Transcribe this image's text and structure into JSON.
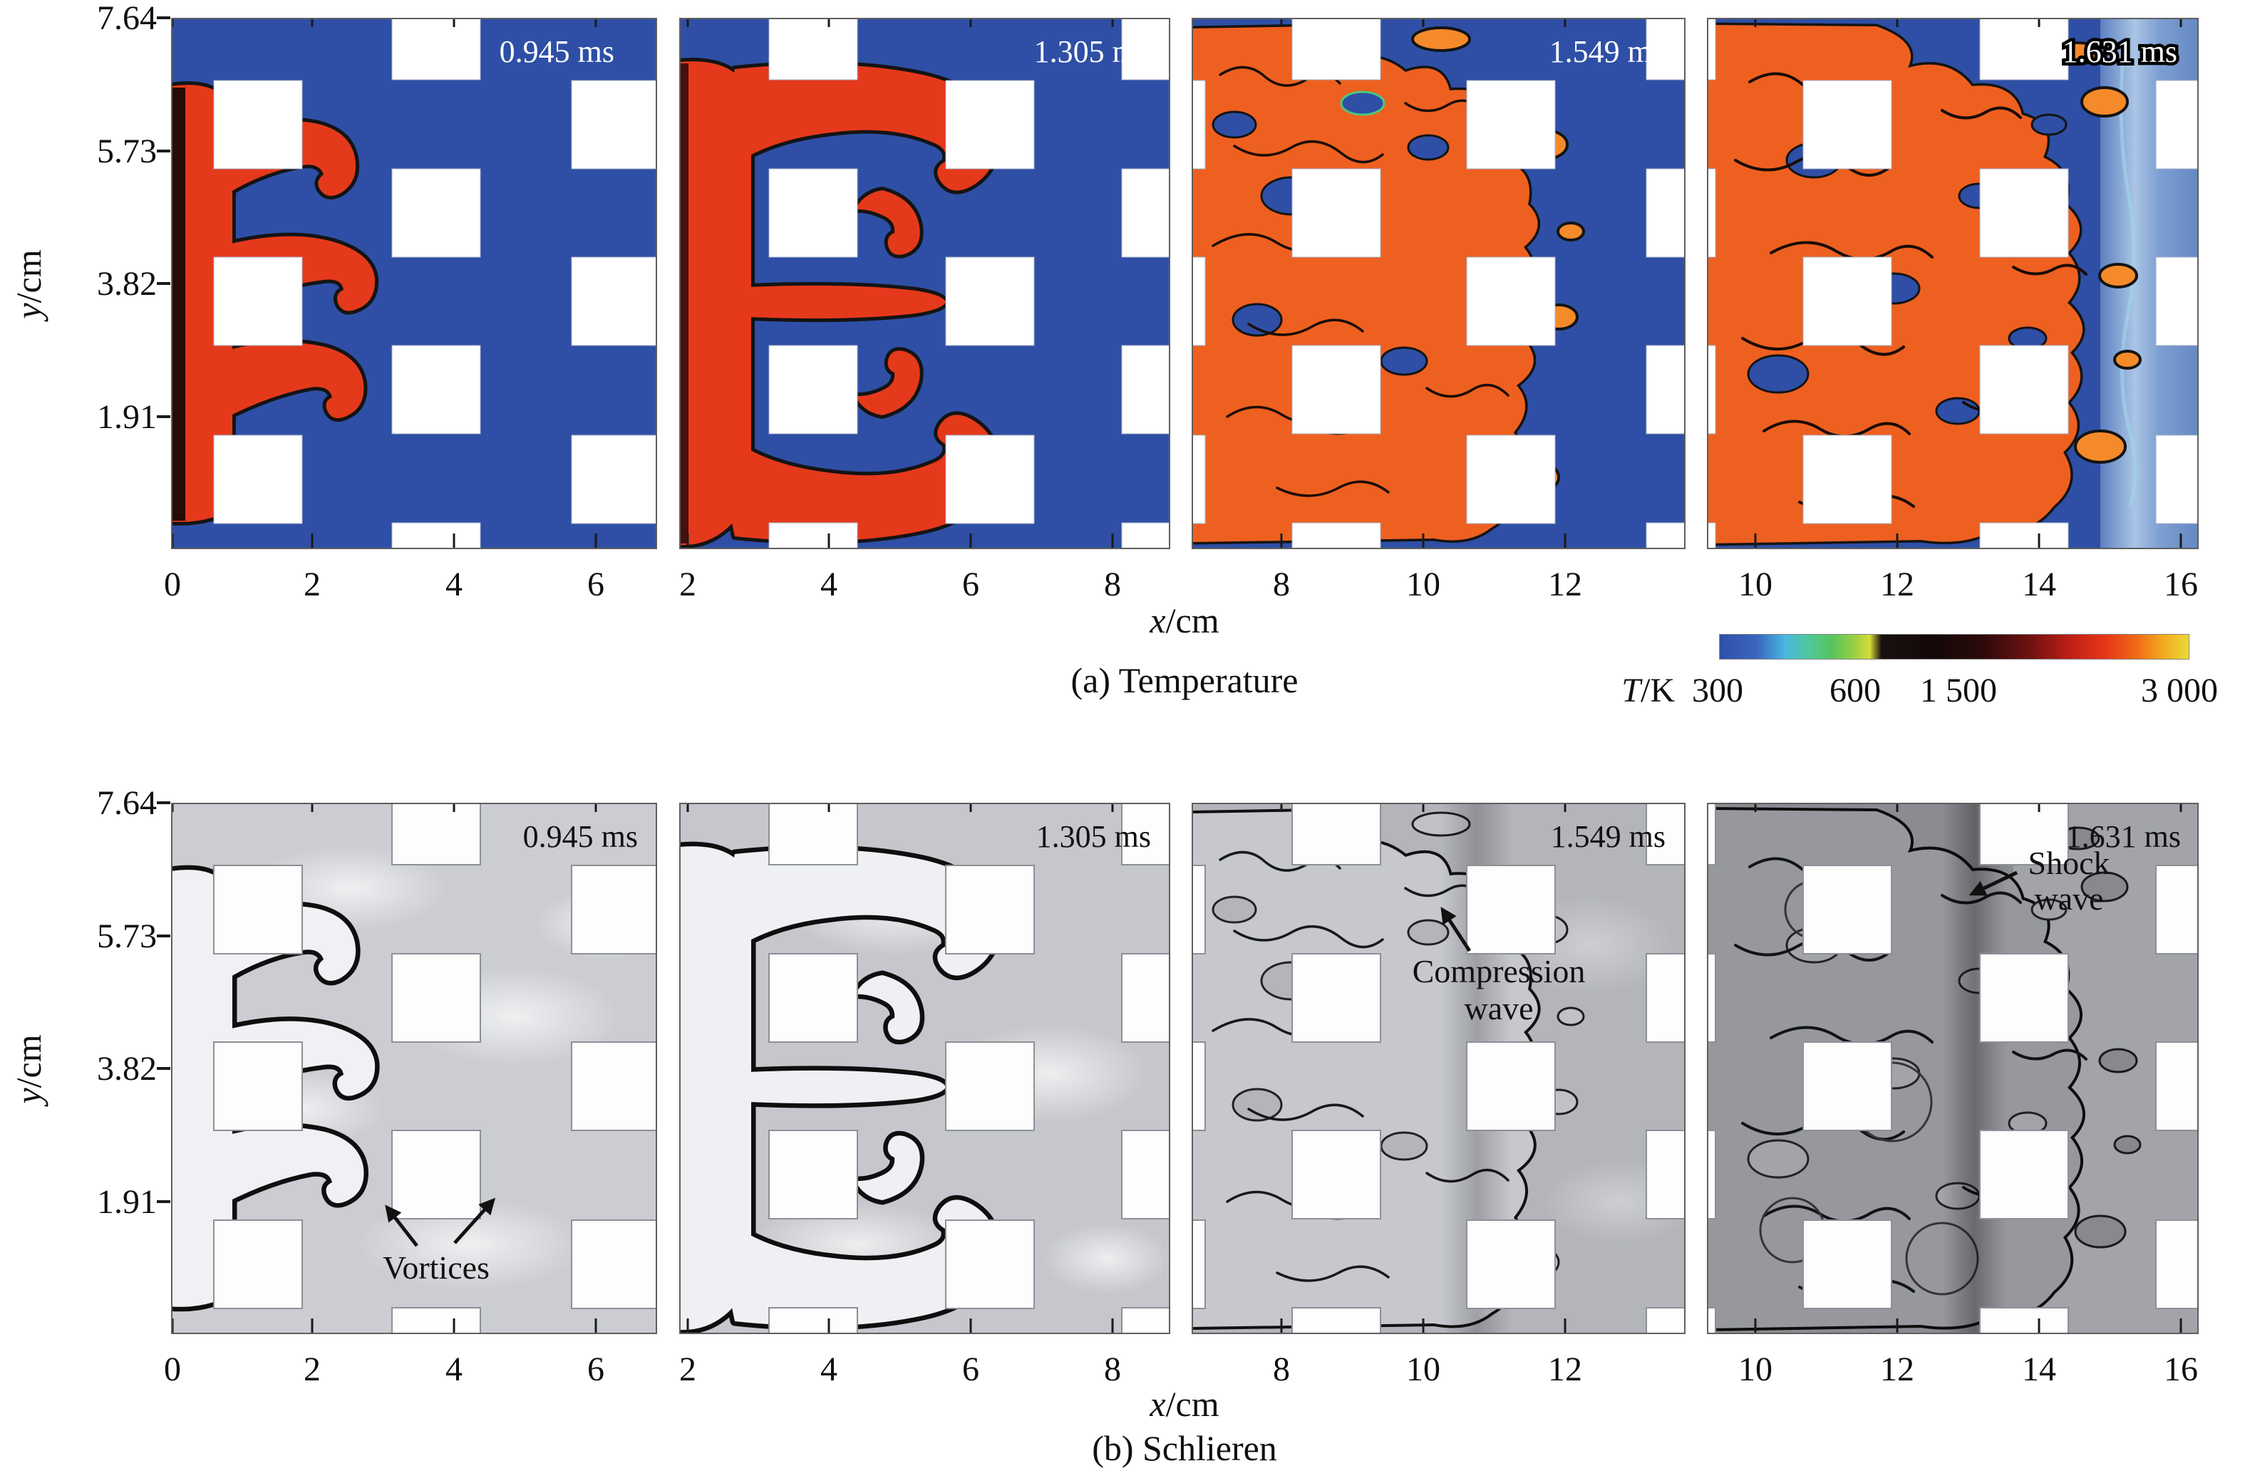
{
  "figure": {
    "captions": {
      "a": "(a) Temperature",
      "b": "(b) Schlieren"
    },
    "timestamps": [
      "0.945 ms",
      "1.305 ms",
      "1.549 ms",
      "1.631 ms"
    ],
    "axes": {
      "x_var": "x",
      "x_unit": "/cm",
      "y_var": "y",
      "y_unit": "/cm",
      "y_tick_labels": [
        "7.64",
        "5.73",
        "3.82",
        "1.91"
      ],
      "x_tick_labels": [
        [
          "0",
          "2",
          "4",
          "6"
        ],
        [
          "2",
          "4",
          "6",
          "8"
        ],
        [
          "8",
          "10",
          "12"
        ],
        [
          "10",
          "12",
          "14",
          "16"
        ]
      ]
    },
    "colorbar": {
      "label_var": "T",
      "label_unit": "/K",
      "tick_labels": [
        "300",
        "600",
        "1 500",
        "3 000"
      ]
    },
    "annotations": {
      "vortices": "Vortices",
      "compression_line1": "Compression",
      "compression_line2": "wave",
      "shock_line1": "Shock",
      "shock_line2": "wave"
    },
    "colors": {
      "temp_background": "#2e4fa5",
      "flame_red": "#e5391b",
      "flame_orange": "#ee6020",
      "flame_orange_bright": "#f58a2a",
      "schlieren_bg_1": "#cbcdd2",
      "schlieren_bg_2": "#c5c7cc",
      "schlieren_bg_3": "#b3b5bb",
      "schlieren_bg_4": "#a2a4aa",
      "contour_black": "#141414"
    }
  },
  "chart_data": {
    "type": "heatmap",
    "title": "",
    "rows": [
      {
        "caption": "(a) Temperature",
        "panels": [
          {
            "time_ms": 0.945,
            "x_range_cm": [
              0,
              6.9
            ],
            "y_range_cm": [
              0,
              7.64
            ]
          },
          {
            "time_ms": 1.305,
            "x_range_cm": [
              1.9,
              8.9
            ],
            "y_range_cm": [
              0,
              7.64
            ]
          },
          {
            "time_ms": 1.549,
            "x_range_cm": [
              6.7,
              13.7
            ],
            "y_range_cm": [
              0,
              7.64
            ]
          },
          {
            "time_ms": 1.631,
            "x_range_cm": [
              9.3,
              16.3
            ],
            "y_range_cm": [
              0,
              7.64
            ]
          }
        ]
      },
      {
        "caption": "(b) Schlieren",
        "panels": [
          {
            "time_ms": 0.945,
            "x_range_cm": [
              0,
              6.9
            ],
            "y_range_cm": [
              0,
              7.64
            ]
          },
          {
            "time_ms": 1.305,
            "x_range_cm": [
              1.9,
              8.9
            ],
            "y_range_cm": [
              0,
              7.64
            ]
          },
          {
            "time_ms": 1.549,
            "x_range_cm": [
              6.7,
              13.7
            ],
            "y_range_cm": [
              0,
              7.64
            ]
          },
          {
            "time_ms": 1.631,
            "x_range_cm": [
              9.3,
              16.3
            ],
            "y_range_cm": [
              0,
              7.64
            ]
          }
        ]
      }
    ],
    "x_axis_label": "x/cm",
    "y_axis_label": "y/cm",
    "y_ticks": [
      1.91,
      3.82,
      5.73,
      7.64
    ],
    "colorbar": {
      "label": "T/K",
      "ticks": [
        300,
        600,
        1500,
        3000
      ],
      "scale": "nonlinear"
    },
    "obstacles": "staggered grid of square obstacles (white), square size approx 1.27 cm, pitch approx 2.55 cm",
    "annotations": [
      "Vortices",
      "Compression wave",
      "Shock wave"
    ]
  }
}
